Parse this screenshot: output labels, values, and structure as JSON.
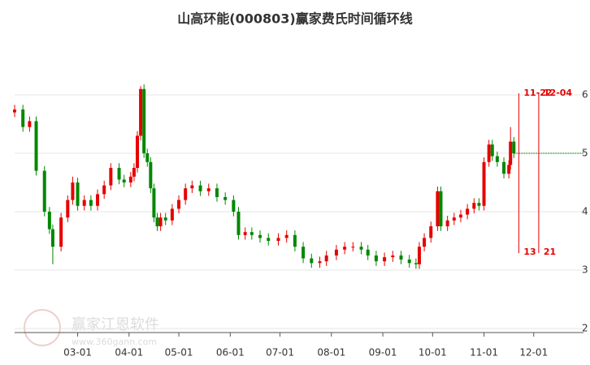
{
  "chart_data": {
    "type": "candlestick",
    "title": "山高环能(000803)赢家费氏时间循环线",
    "x": [
      "01-22",
      "01-27",
      "01-31",
      "02-04",
      "02-09",
      "02-12",
      "02-14",
      "02-19",
      "02-23",
      "02-26",
      "03-01",
      "03-05",
      "03-09",
      "03-13",
      "03-17",
      "03-21",
      "03-26",
      "03-29",
      "04-02",
      "04-04",
      "04-06",
      "04-08",
      "04-10",
      "04-12",
      "04-14",
      "04-16",
      "04-18",
      "04-20",
      "04-23",
      "04-27",
      "05-01",
      "05-05",
      "05-09",
      "05-14",
      "05-19",
      "05-24",
      "05-29",
      "06-03",
      "06-06",
      "06-10",
      "06-14",
      "06-19",
      "06-24",
      "06-30",
      "07-05",
      "07-10",
      "07-15",
      "07-20",
      "07-25",
      "07-29",
      "08-04",
      "08-09",
      "08-14",
      "08-19",
      "08-23",
      "08-28",
      "09-02",
      "09-07",
      "09-12",
      "09-17",
      "09-21",
      "09-23",
      "09-26",
      "09-30",
      "10-04",
      "10-06",
      "10-10",
      "10-14",
      "10-18",
      "10-22",
      "10-26",
      "10-29",
      "11-01",
      "11-04",
      "11-06",
      "11-09",
      "11-13",
      "11-16",
      "11-17",
      "11-19"
    ],
    "open": [
      5.7,
      5.75,
      5.45,
      5.55,
      4.7,
      4.0,
      3.7,
      3.4,
      3.9,
      4.2,
      4.5,
      4.1,
      4.2,
      4.1,
      4.3,
      4.45,
      4.75,
      4.55,
      4.5,
      4.6,
      4.75,
      5.3,
      6.1,
      5.0,
      4.85,
      4.4,
      3.9,
      3.75,
      3.9,
      3.85,
      4.05,
      4.2,
      4.4,
      4.45,
      4.35,
      4.4,
      4.25,
      4.2,
      4.0,
      3.6,
      3.65,
      3.6,
      3.55,
      3.5,
      3.55,
      3.6,
      3.4,
      3.2,
      3.12,
      3.15,
      3.25,
      3.35,
      3.4,
      3.4,
      3.35,
      3.25,
      3.15,
      3.22,
      3.25,
      3.18,
      3.12,
      3.1,
      3.4,
      3.55,
      3.75,
      4.35,
      3.75,
      3.85,
      3.9,
      3.95,
      4.05,
      4.15,
      4.1,
      4.85,
      5.15,
      4.95,
      4.85,
      4.65,
      4.8,
      5.2
    ],
    "high": [
      5.83,
      5.83,
      5.63,
      5.63,
      4.78,
      4.08,
      3.78,
      3.98,
      4.28,
      4.6,
      4.58,
      4.28,
      4.28,
      4.38,
      4.53,
      4.83,
      4.83,
      4.63,
      4.68,
      4.83,
      5.38,
      6.15,
      6.18,
      5.08,
      4.93,
      4.48,
      3.98,
      3.98,
      3.98,
      4.13,
      4.28,
      4.48,
      4.53,
      4.53,
      4.48,
      4.48,
      4.33,
      4.28,
      4.08,
      3.73,
      3.73,
      3.68,
      3.63,
      3.63,
      3.68,
      3.68,
      3.48,
      3.28,
      3.23,
      3.33,
      3.43,
      3.48,
      3.48,
      3.48,
      3.43,
      3.33,
      3.3,
      3.33,
      3.33,
      3.26,
      3.2,
      3.48,
      3.63,
      3.83,
      4.43,
      4.43,
      3.93,
      3.98,
      4.03,
      4.13,
      4.23,
      4.23,
      4.93,
      5.23,
      5.23,
      5.03,
      4.93,
      4.88,
      5.45,
      5.28
    ],
    "low": [
      5.62,
      5.37,
      5.37,
      4.62,
      3.92,
      3.62,
      3.1,
      3.32,
      3.82,
      4.12,
      4.02,
      4.02,
      4.02,
      4.02,
      4.22,
      4.37,
      4.47,
      4.42,
      4.42,
      4.52,
      4.67,
      5.22,
      4.92,
      4.77,
      4.32,
      3.82,
      3.67,
      3.67,
      3.77,
      3.77,
      3.97,
      4.12,
      4.32,
      4.27,
      4.27,
      4.17,
      4.12,
      3.92,
      3.52,
      3.52,
      3.52,
      3.47,
      3.42,
      3.42,
      3.47,
      3.32,
      3.12,
      3.04,
      3.04,
      3.07,
      3.17,
      3.27,
      3.32,
      3.27,
      3.17,
      3.07,
      3.07,
      3.14,
      3.1,
      3.04,
      3.02,
      3.02,
      3.32,
      3.47,
      3.67,
      3.67,
      3.67,
      3.77,
      3.82,
      3.87,
      3.97,
      4.02,
      4.02,
      4.77,
      4.87,
      4.77,
      4.57,
      4.57,
      4.72,
      4.92
    ],
    "close": [
      5.75,
      5.45,
      5.55,
      4.7,
      4.0,
      3.7,
      3.4,
      3.9,
      4.2,
      4.5,
      4.1,
      4.2,
      4.1,
      4.3,
      4.45,
      4.75,
      4.55,
      4.5,
      4.6,
      4.75,
      5.3,
      6.1,
      5.0,
      4.85,
      4.4,
      3.9,
      3.75,
      3.9,
      3.85,
      4.05,
      4.2,
      4.4,
      4.45,
      4.35,
      4.4,
      4.25,
      4.2,
      4.0,
      3.6,
      3.65,
      3.6,
      3.55,
      3.5,
      3.55,
      3.6,
      3.4,
      3.2,
      3.12,
      3.15,
      3.25,
      3.35,
      3.4,
      3.4,
      3.35,
      3.25,
      3.15,
      3.22,
      3.25,
      3.18,
      3.12,
      3.1,
      3.4,
      3.55,
      3.75,
      4.35,
      3.75,
      3.85,
      3.9,
      3.95,
      4.05,
      4.15,
      4.1,
      4.85,
      5.15,
      4.95,
      4.85,
      4.65,
      4.8,
      5.2,
      5.0
    ],
    "up_color": "#e60000",
    "down_color": "#008800",
    "xlim": [
      "01-22",
      "12-31"
    ],
    "xticks": [
      "03-01",
      "04-01",
      "05-01",
      "06-01",
      "07-01",
      "08-01",
      "09-01",
      "10-01",
      "11-01",
      "12-01"
    ],
    "ylim": [
      1.93,
      7.0
    ],
    "yticks": [
      2,
      3,
      4,
      5,
      6
    ],
    "grid": true,
    "reference_line": {
      "value": 5.0,
      "color": "#008800"
    },
    "cycle_lines": [
      {
        "date": "11-22",
        "days": 13,
        "color": "#e60000"
      },
      {
        "date": "12-04",
        "days": 21,
        "color": "#e60000"
      }
    ],
    "watermark": "赢家江恩软件",
    "watermark_url": "www.360gann.com"
  }
}
